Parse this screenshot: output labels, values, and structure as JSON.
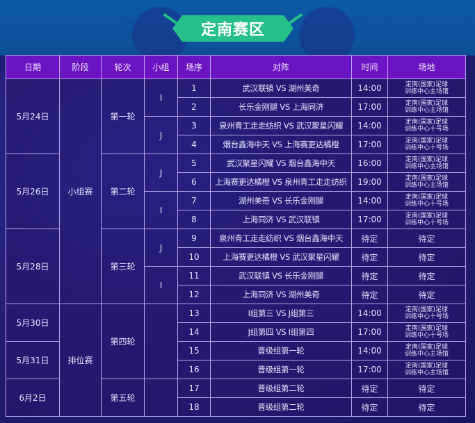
{
  "title": "定南赛区",
  "headers": [
    "日期",
    "阶段",
    "轮次",
    "小组",
    "场序",
    "对阵",
    "时间",
    "场地"
  ],
  "dates": [
    "5月24日",
    "5月26日",
    "5月28日",
    "5月30日",
    "5月31日",
    "6月2日"
  ],
  "stages": [
    "小组赛",
    "排位赛"
  ],
  "rounds": [
    "第一轮",
    "第二轮",
    "第三轮",
    "第四轮",
    "第五轮"
  ],
  "groups": [
    "I",
    "J",
    "J",
    "I",
    "J",
    "I"
  ],
  "venue_line1": "定南(国家)足球",
  "matches": [
    {
      "no": "1",
      "match": "武汉联镇 VS 湖州美奇",
      "time": "14:00",
      "venue2": "训练中心主场馆"
    },
    {
      "no": "2",
      "match": "长乐金刚腿 VS 上海同济",
      "time": "17:00",
      "venue2": "训练中心主场馆"
    },
    {
      "no": "3",
      "match": "泉州青工走走纺织 VS 武汉聚星闪耀",
      "time": "14:00",
      "venue2": "训练中心十号场"
    },
    {
      "no": "4",
      "match": "烟台鑫海中天 VS 上海赛更达橘橙",
      "time": "17:00",
      "venue2": "训练中心十号场"
    },
    {
      "no": "5",
      "match": "武汉聚星闪耀 VS 烟台鑫海中天",
      "time": "16:00",
      "venue2": "训练中心主场馆"
    },
    {
      "no": "6",
      "match": "上海赛更达橘橙 VS 泉州青工走走纺织",
      "time": "19:00",
      "venue2": "训练中心主场馆"
    },
    {
      "no": "7",
      "match": "湖州美奇 VS 长乐金刚腿",
      "time": "14:00",
      "venue2": "训练中心十号场"
    },
    {
      "no": "8",
      "match": "上海同济 VS 武汉联镇",
      "time": "17:00",
      "venue2": "训练中心十号场"
    },
    {
      "no": "9",
      "match": "泉州青工走走纺织 VS 烟台鑫海中天",
      "time": "待定",
      "venue": "待定"
    },
    {
      "no": "10",
      "match": "上海赛更达橘橙 VS 武汉聚星闪耀",
      "time": "待定",
      "venue": "待定"
    },
    {
      "no": "11",
      "match": "武汉联镇 VS 长乐金刚腿",
      "time": "待定",
      "venue": "待定"
    },
    {
      "no": "12",
      "match": "上海同济 VS 湖州美奇",
      "time": "待定",
      "venue": "待定"
    },
    {
      "no": "13",
      "match": "I组第三 VS J组第三",
      "time": "14:00",
      "venue2": "训练中心十号场"
    },
    {
      "no": "14",
      "match": "J组第四 VS I组第四",
      "time": "17:00",
      "venue2": "训练中心十号场"
    },
    {
      "no": "15",
      "match": "晋级组第一轮",
      "time": "14:00",
      "venue2": "训练中心主场馆"
    },
    {
      "no": "16",
      "match": "晋级组第一轮",
      "time": "17:00",
      "venue2": "训练中心主场馆"
    },
    {
      "no": "17",
      "match": "晋级组第二轮",
      "time": "待定",
      "venue": "待定"
    },
    {
      "no": "18",
      "match": "晋级组第二轮",
      "time": "待定",
      "venue": "待定"
    }
  ],
  "colors": {
    "banner": "#25c08a",
    "header": "#6c13c4",
    "border": "#b9a6ee"
  }
}
